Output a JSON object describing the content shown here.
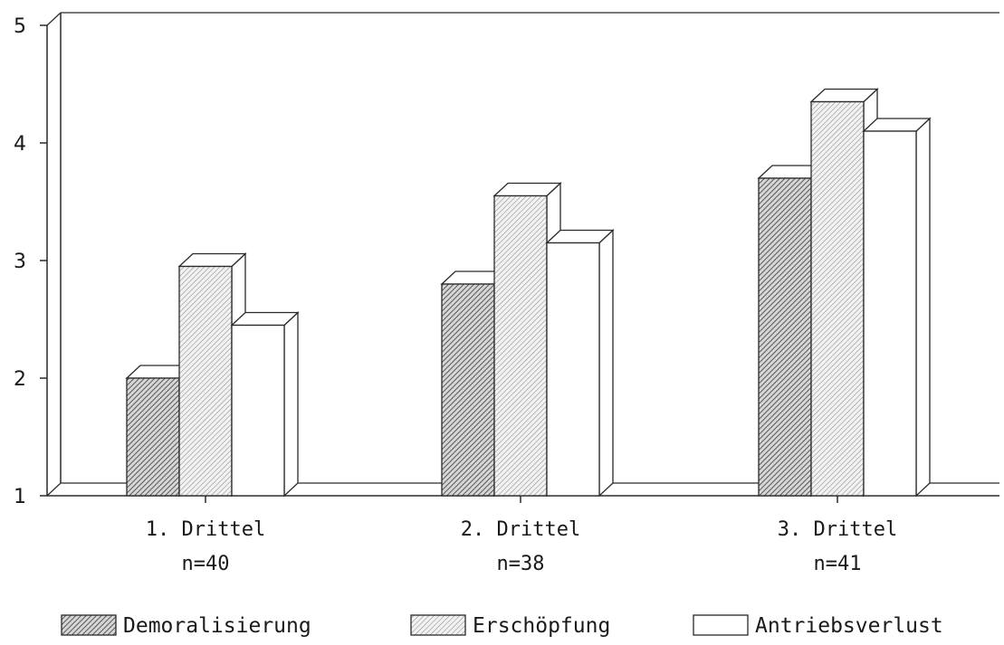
{
  "chart_data": {
    "type": "bar",
    "categories": [
      "1. Drittel",
      "2. Drittel",
      "3. Drittel"
    ],
    "category_counts": [
      "n=40",
      "n=38",
      "n=41"
    ],
    "series": [
      {
        "name": "Demoralisierung",
        "values": [
          2.0,
          2.8,
          3.7
        ],
        "pattern": "dense-hatch"
      },
      {
        "name": "Erschöpfung",
        "values": [
          2.95,
          3.55,
          4.35
        ],
        "pattern": "light-hatch"
      },
      {
        "name": "Antriebsverlust",
        "values": [
          2.45,
          3.15,
          4.1
        ],
        "pattern": "none"
      }
    ],
    "yticks": [
      1,
      2,
      3,
      4,
      5
    ],
    "ylim": [
      1,
      5
    ],
    "grid": false,
    "legend_position": "bottom",
    "style": "3d-bars",
    "title": "",
    "xlabel": "",
    "ylabel": ""
  }
}
